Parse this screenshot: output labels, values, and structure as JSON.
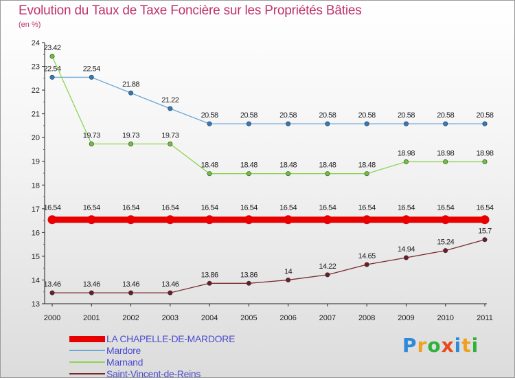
{
  "chart_data": {
    "type": "line",
    "title": "Evolution du Taux de Taxe Foncière sur les Propriétés Bâties",
    "unit_label": "(en %)",
    "ylim": [
      13,
      24
    ],
    "y_ticks": [
      "13",
      "14",
      "15",
      "16",
      "17",
      "18",
      "19",
      "20",
      "21",
      "22",
      "23",
      "24"
    ],
    "x": [
      "2000",
      "2001",
      "2002",
      "2003",
      "2004",
      "2005",
      "2006",
      "2007",
      "2008",
      "2009",
      "2010",
      "2011"
    ],
    "series": [
      {
        "name": "LA CHAPELLE-DE-MARDORE",
        "color": "#e80000",
        "marker_color": "#e80000",
        "style": "thick",
        "values": [
          16.54,
          16.54,
          16.54,
          16.54,
          16.54,
          16.54,
          16.54,
          16.54,
          16.54,
          16.54,
          16.54,
          16.54
        ],
        "labels": [
          "16.54",
          "16.54",
          "16.54",
          "16.54",
          "16.54",
          "16.54",
          "16.54",
          "16.54",
          "16.54",
          "16.54",
          "16.54",
          "16.54"
        ]
      },
      {
        "name": "Mardore",
        "color": "#6aa6d6",
        "marker_color": "#2f7bbf",
        "style": "thin",
        "values": [
          22.54,
          22.54,
          21.88,
          21.22,
          20.58,
          20.58,
          20.58,
          20.58,
          20.58,
          20.58,
          20.58,
          20.58
        ],
        "labels": [
          "22.54",
          "22.54",
          "21.88",
          "21.22",
          "20.58",
          "20.58",
          "20.58",
          "20.58",
          "20.58",
          "20.58",
          "20.58",
          "20.58"
        ]
      },
      {
        "name": "Marnand",
        "color": "#8ed454",
        "marker_color": "#6cc23a",
        "style": "thin",
        "values": [
          23.42,
          19.73,
          19.73,
          19.73,
          18.48,
          18.48,
          18.48,
          18.48,
          18.48,
          18.98,
          18.98,
          18.98
        ],
        "labels": [
          "23.42",
          "19.73",
          "19.73",
          "19.73",
          "18.48",
          "18.48",
          "18.48",
          "18.48",
          "18.48",
          "18.98",
          "18.98",
          "18.98"
        ]
      },
      {
        "name": "Saint-Vincent-de-Reins",
        "color": "#7a2a30",
        "marker_color": "#6e1c24",
        "style": "thin",
        "values": [
          13.46,
          13.46,
          13.46,
          13.46,
          13.86,
          13.86,
          14,
          14.22,
          14.65,
          14.94,
          15.24,
          15.7
        ],
        "labels": [
          "13.46",
          "13.46",
          "13.46",
          "13.46",
          "13.86",
          "13.86",
          "14",
          "14.22",
          "14.65",
          "14.94",
          "15.24",
          "15.7"
        ]
      }
    ]
  },
  "branding": {
    "letters": [
      "P",
      "r",
      "o",
      "x",
      "i",
      "t",
      "i"
    ],
    "colors": [
      "#2e8ad8",
      "#f0a020",
      "#2eb23a",
      "#e84a1a",
      "#2e8ad8",
      "#f0a020",
      "#2eb23a"
    ]
  }
}
